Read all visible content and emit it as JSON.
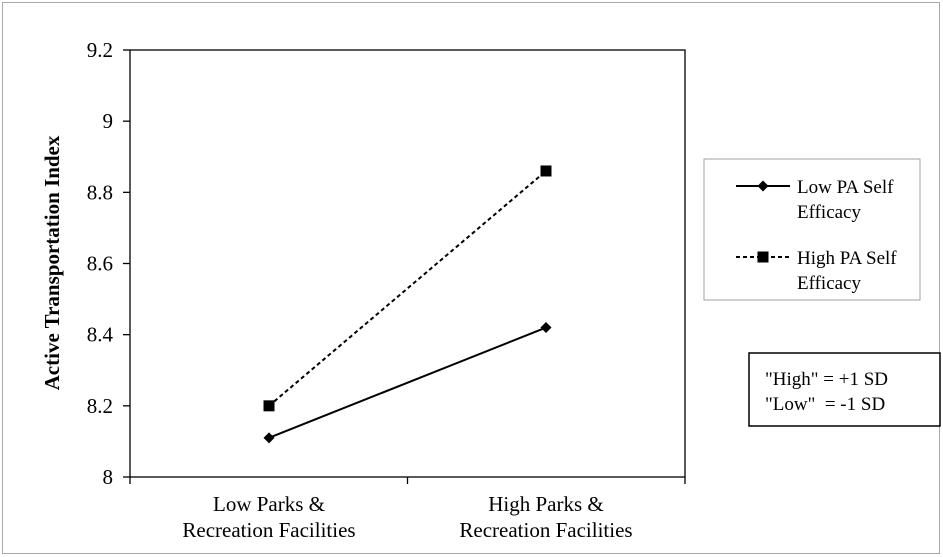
{
  "chart_data": {
    "type": "line",
    "title": "",
    "ylabel": "Active Transportation Index",
    "xlabel": "",
    "categories": [
      [
        "Low Parks &",
        "Recreation Facilities"
      ],
      [
        "High Parks &",
        "Recreation Facilities"
      ]
    ],
    "ylim": [
      8,
      9.2
    ],
    "yticks": [
      8,
      8.2,
      8.4,
      8.6,
      8.8,
      9,
      9.2
    ],
    "ytick_labels": [
      "8",
      "8.2",
      "8.4",
      "8.6",
      "8.8",
      "9",
      "9.2"
    ],
    "grid": false,
    "legend_position": "right",
    "series": [
      {
        "name_lines": [
          "Low PA Self",
          "Efficacy"
        ],
        "values": [
          8.11,
          8.42
        ],
        "marker": "diamond",
        "line_style": "solid",
        "color": "#000000"
      },
      {
        "name_lines": [
          "High PA Self",
          "Efficacy"
        ],
        "values": [
          8.2,
          8.86
        ],
        "marker": "square",
        "line_style": "dashed",
        "color": "#000000"
      }
    ]
  },
  "note": {
    "lines": [
      "\"High\" = +1 SD",
      "\"Low\"  = -1 SD"
    ]
  }
}
